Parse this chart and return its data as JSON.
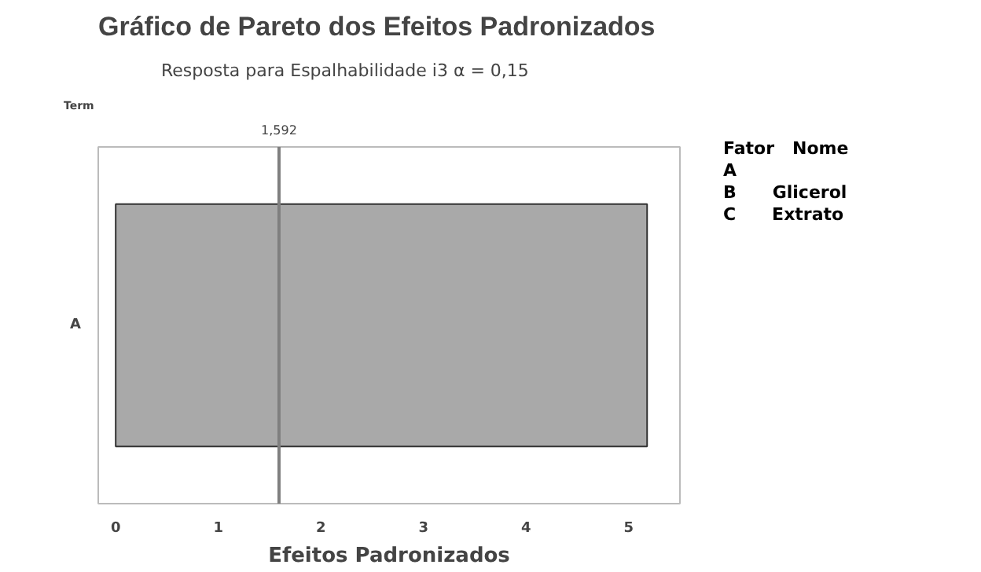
{
  "chart_data": {
    "type": "bar",
    "orientation": "horizontal",
    "title": "Gráfico de Pareto dos Efeitos Padronizados",
    "subtitle": "Resposta para Espalhabilidade i3  α = 0,15",
    "xlabel": "Efeitos Padronizados",
    "ylabel": "Term",
    "categories": [
      "A"
    ],
    "values": [
      5.18
    ],
    "color": "#a9a9a9",
    "xlim": [
      -0.17,
      5.5
    ],
    "xticks": [
      0,
      1,
      2,
      3,
      4,
      5
    ],
    "grid": false,
    "ref_lines": [
      {
        "axis": "x",
        "value": 1.592,
        "label": "1,592",
        "color": "#7f7f7f"
      }
    ],
    "annotations": [
      "Fator   Nome",
      "A",
      "B      Glicerol",
      "C      Extrato"
    ]
  }
}
